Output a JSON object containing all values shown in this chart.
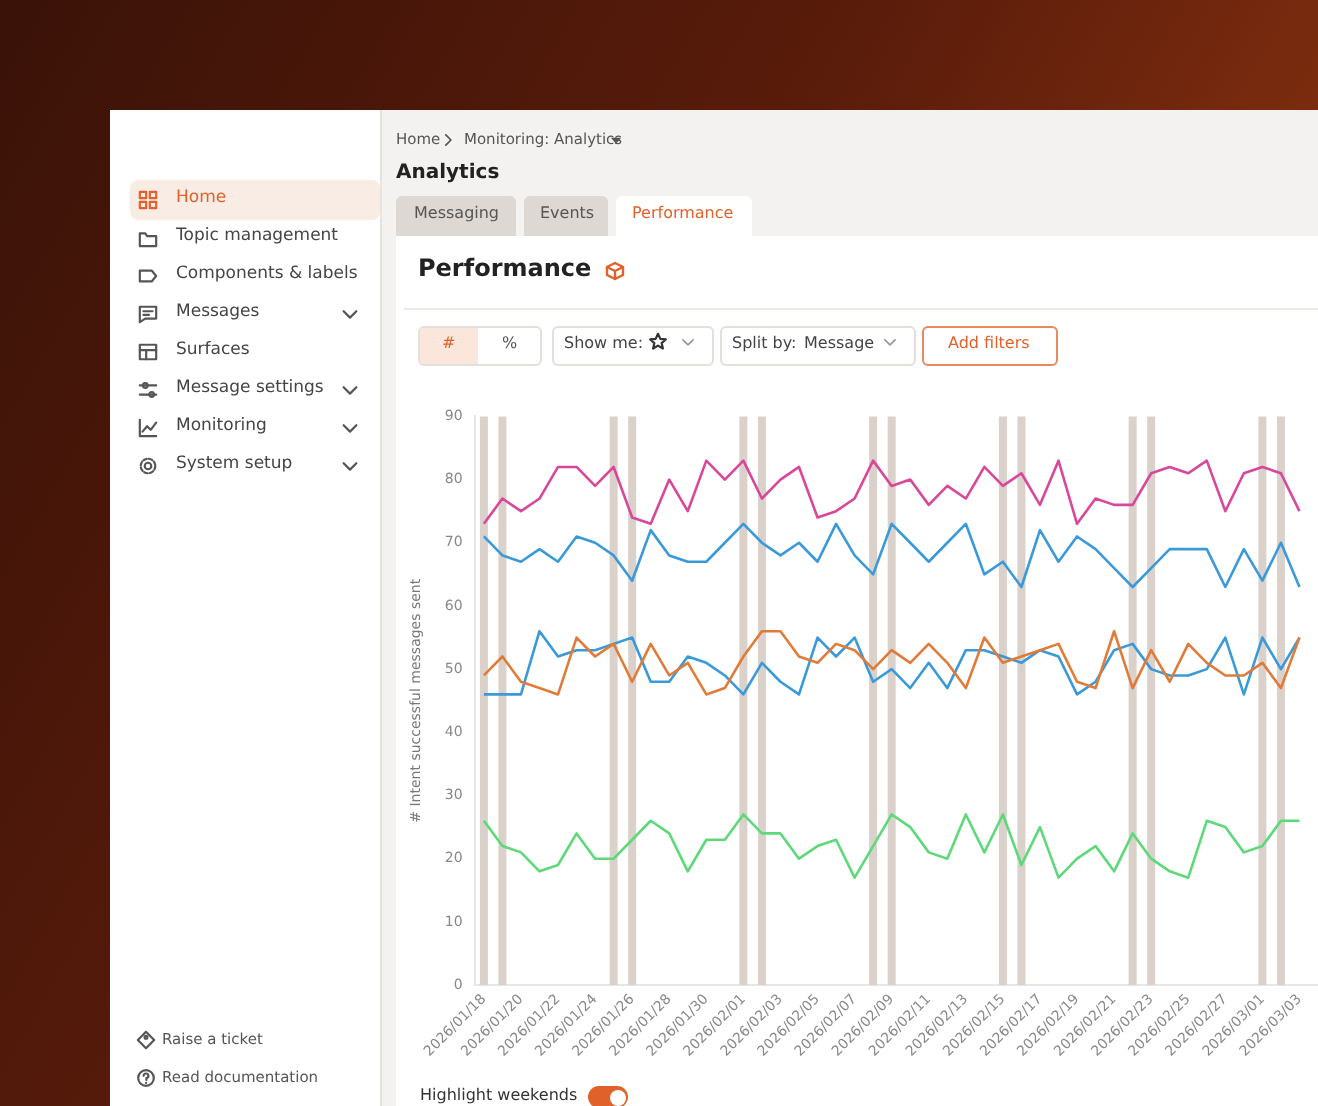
{
  "chart_data": {
    "type": "line",
    "title": "Performance",
    "ylabel": "# Intent successful messages sent",
    "x": [
      "2026-01-18",
      "2026-01-19",
      "2026-01-20",
      "2026-01-21",
      "2026-01-22",
      "2026-01-23",
      "2026-01-24",
      "2026-01-25",
      "2026-01-26",
      "2026-01-27",
      "2026-01-28",
      "2026-01-29",
      "2026-01-30",
      "2026-01-31",
      "2026-02-01",
      "2026-02-02",
      "2026-02-03",
      "2026-02-04",
      "2026-02-05",
      "2026-02-06",
      "2026-02-07",
      "2026-02-08",
      "2026-02-09",
      "2026-02-10",
      "2026-02-11",
      "2026-02-12",
      "2026-02-13",
      "2026-02-14",
      "2026-02-15",
      "2026-02-16",
      "2026-02-17",
      "2026-02-18",
      "2026-02-19",
      "2026-02-20",
      "2026-02-21",
      "2026-02-22",
      "2026-02-23",
      "2026-02-24",
      "2026-02-25",
      "2026-02-26",
      "2026-02-27",
      "2026-02-28",
      "2026-03-01",
      "2026-03-02",
      "2026-03-03"
    ],
    "series": [
      {
        "color": "#d9479b",
        "values": [
          73,
          77,
          75,
          77,
          82,
          82,
          79,
          82,
          74,
          73,
          80,
          75,
          83,
          80,
          83,
          77,
          80,
          82,
          74,
          75,
          77,
          83,
          79,
          80,
          76,
          79,
          77,
          82,
          79,
          81,
          76,
          83,
          73,
          77,
          76,
          76,
          81,
          82,
          81,
          83,
          75,
          81,
          82,
          81,
          75
        ]
      },
      {
        "color": "#3a9ad9",
        "values": [
          71,
          68,
          67,
          69,
          67,
          71,
          70,
          68,
          64,
          72,
          68,
          67,
          67,
          70,
          73,
          70,
          68,
          70,
          67,
          73,
          68,
          65,
          73,
          70,
          67,
          70,
          73,
          65,
          67,
          63,
          72,
          67,
          71,
          69,
          66,
          63,
          66,
          69,
          69,
          69,
          63,
          69,
          64,
          70,
          63
        ]
      },
      {
        "color": "#e07b39",
        "values": [
          49,
          52,
          48,
          47,
          46,
          55,
          52,
          54,
          48,
          54,
          49,
          51,
          46,
          47,
          52,
          56,
          56,
          52,
          51,
          54,
          53,
          50,
          53,
          51,
          54,
          51,
          47,
          55,
          51,
          52,
          53,
          54,
          48,
          47,
          56,
          47,
          53,
          48,
          54,
          51,
          49,
          49,
          51,
          47,
          55
        ]
      },
      {
        "color": "#3a9ad9",
        "values": [
          46,
          46,
          46,
          56,
          52,
          53,
          53,
          54,
          55,
          48,
          48,
          52,
          51,
          49,
          46,
          51,
          48,
          46,
          55,
          52,
          55,
          48,
          50,
          47,
          51,
          47,
          53,
          53,
          52,
          51,
          53,
          52,
          46,
          48,
          53,
          54,
          50,
          49,
          49,
          50,
          55,
          46,
          55,
          50,
          55
        ]
      },
      {
        "color": "#5dd97a",
        "values": [
          26,
          22,
          21,
          18,
          19,
          24,
          20,
          20,
          23,
          26,
          24,
          18,
          23,
          23,
          27,
          24,
          24,
          20,
          22,
          23,
          17,
          22,
          27,
          25,
          21,
          20,
          27,
          21,
          27,
          19,
          25,
          17,
          20,
          22,
          18,
          24,
          20,
          18,
          17,
          26,
          25,
          21,
          22,
          26,
          26
        ]
      }
    ],
    "xlim": [
      "2026-01-17T12:00",
      "2026-03-04"
    ],
    "xticks": [
      {
        "value": "2026-01-18",
        "label": "2026/01/18"
      },
      {
        "value": "2026-01-20",
        "label": "2026/01/20"
      },
      {
        "value": "2026-01-22",
        "label": "2026/01/22"
      },
      {
        "value": "2026-01-24",
        "label": "2026/01/24"
      },
      {
        "value": "2026-01-26",
        "label": "2026/01/26"
      },
      {
        "value": "2026-01-28",
        "label": "2026/01/28"
      },
      {
        "value": "2026-01-30",
        "label": "2026/01/30"
      },
      {
        "value": "2026-02-01",
        "label": "2026/02/01"
      },
      {
        "value": "2026-02-03",
        "label": "2026/02/03"
      },
      {
        "value": "2026-02-05",
        "label": "2026/02/05"
      },
      {
        "value": "2026-02-07",
        "label": "2026/02/07"
      },
      {
        "value": "2026-02-09",
        "label": "2026/02/09"
      },
      {
        "value": "2026-02-11",
        "label": "2026/02/11"
      },
      {
        "value": "2026-02-13",
        "label": "2026/02/13"
      },
      {
        "value": "2026-02-15",
        "label": "2026/02/15"
      },
      {
        "value": "2026-02-17",
        "label": "2026/02/17"
      },
      {
        "value": "2026-02-19",
        "label": "2026/02/19"
      },
      {
        "value": "2026-02-21",
        "label": "2026/02/21"
      },
      {
        "value": "2026-02-23",
        "label": "2026/02/23"
      },
      {
        "value": "2026-02-25",
        "label": "2026/02/25"
      },
      {
        "value": "2026-02-27",
        "label": "2026/02/27"
      },
      {
        "value": "2026-03-01",
        "label": "2026/03/01"
      },
      {
        "value": "2026-03-03",
        "label": "2026/03/03"
      }
    ],
    "ylim": [
      0,
      90
    ],
    "yticks": [
      0,
      10,
      20,
      30,
      40,
      50,
      60,
      70,
      80,
      90
    ],
    "grid": false,
    "legend": false,
    "marker": "none",
    "line_style": "solid",
    "ref_lines": [
      {
        "axis": "x",
        "value": "2026-01-18",
        "color": "#d9d1ca"
      },
      {
        "axis": "x",
        "value": "2026-01-19",
        "color": "#d9d1ca"
      },
      {
        "axis": "x",
        "value": "2026-01-25",
        "color": "#d9d1ca"
      },
      {
        "axis": "x",
        "value": "2026-01-26",
        "color": "#d9d1ca"
      },
      {
        "axis": "x",
        "value": "2026-02-01",
        "color": "#d9d1ca"
      },
      {
        "axis": "x",
        "value": "2026-02-02",
        "color": "#d9d1ca"
      },
      {
        "axis": "x",
        "value": "2026-02-08",
        "color": "#d9d1ca"
      },
      {
        "axis": "x",
        "value": "2026-02-09",
        "color": "#d9d1ca"
      },
      {
        "axis": "x",
        "value": "2026-02-15",
        "color": "#d9d1ca"
      },
      {
        "axis": "x",
        "value": "2026-02-16",
        "color": "#d9d1ca"
      },
      {
        "axis": "x",
        "value": "2026-02-22",
        "color": "#d9d1ca"
      },
      {
        "axis": "x",
        "value": "2026-02-23",
        "color": "#d9d1ca"
      },
      {
        "axis": "x",
        "value": "2026-03-01",
        "color": "#d9d1ca"
      },
      {
        "axis": "x",
        "value": "2026-03-02",
        "color": "#d9d1ca"
      }
    ],
    "annotations": [
      "Home",
      "Topic management",
      "Components & labels",
      "Messages",
      "Surfaces",
      "Message settings",
      "Monitoring",
      "System setup",
      "Raise a ticket",
      "Read documentation",
      "Home",
      "Monitoring: Analytics",
      "Analytics",
      "Messaging",
      "Events",
      "Performance",
      "#",
      "%",
      "Show me:",
      "Split by:",
      "Message",
      "Add filters",
      "Highlight weekends"
    ]
  }
}
